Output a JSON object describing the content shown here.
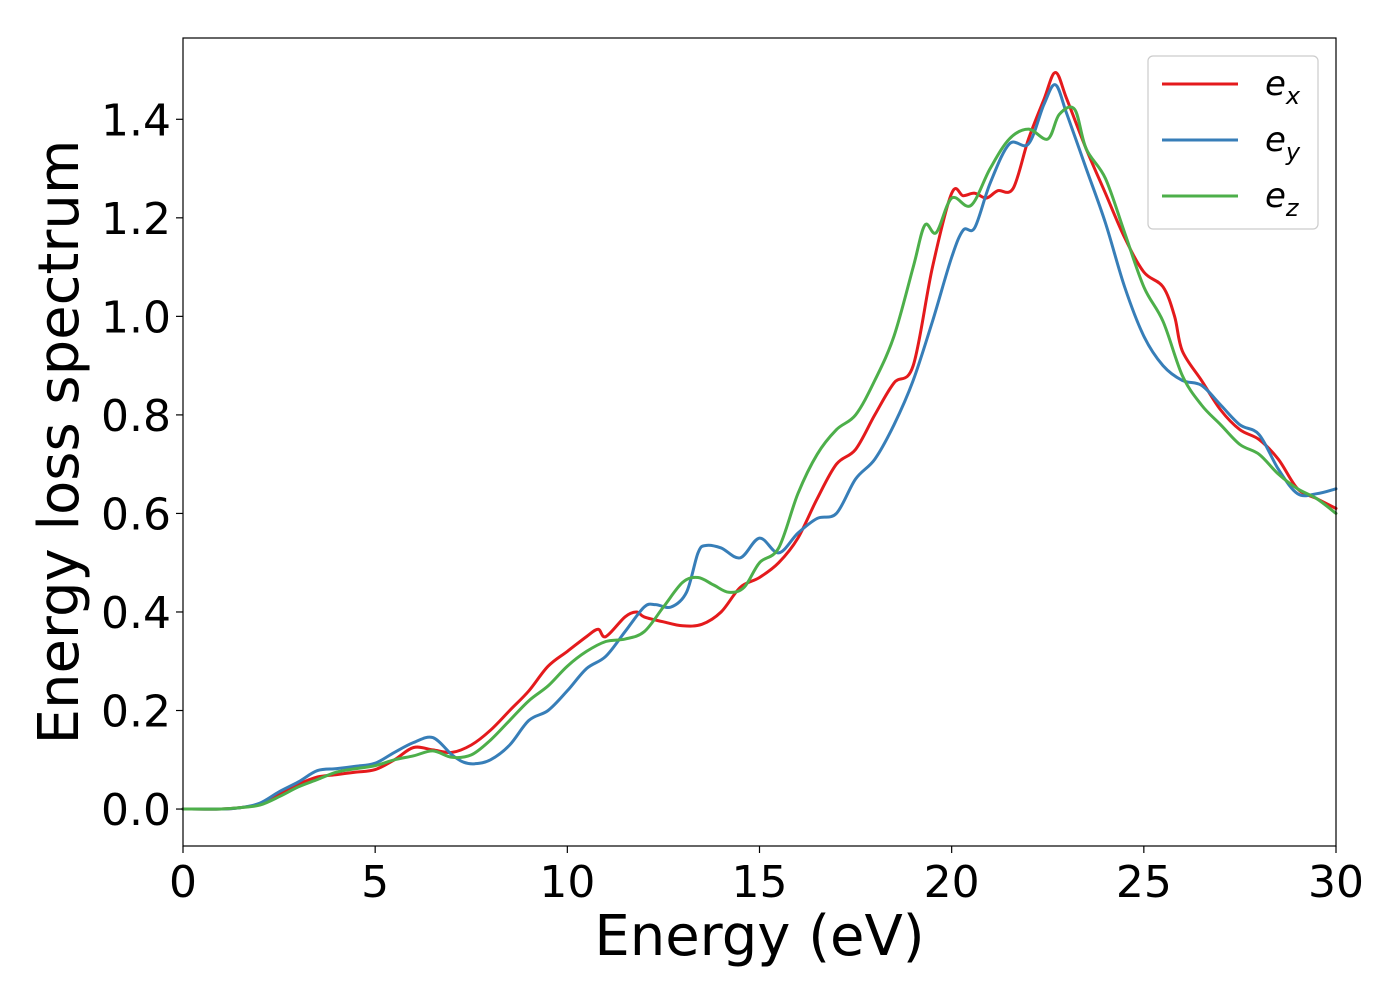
{
  "chart_data": {
    "type": "line",
    "title": "",
    "xlabel": "Energy (eV)",
    "ylabel": "Energy loss spectrum",
    "xlim": [
      0,
      30
    ],
    "ylim": [
      -0.075,
      1.565
    ],
    "xticks": [
      0,
      5,
      10,
      15,
      20,
      25,
      30
    ],
    "xtick_labels": [
      "0",
      "5",
      "10",
      "15",
      "20",
      "25",
      "30"
    ],
    "yticks": [
      0.0,
      0.2,
      0.4,
      0.6,
      0.8,
      1.0,
      1.2,
      1.4
    ],
    "ytick_labels": [
      "0.0",
      "0.2",
      "0.4",
      "0.6",
      "0.8",
      "1.0",
      "1.2",
      "1.4"
    ],
    "grid": false,
    "legend_position": "top-right",
    "series": [
      {
        "name": "e_x",
        "legend_base": "e",
        "legend_sub": "x",
        "color": "#e41a1c",
        "x": [
          0,
          1,
          1.5,
          2,
          2.5,
          3,
          3.5,
          4,
          4.5,
          5,
          5.5,
          6,
          6.5,
          7,
          7.5,
          8,
          8.5,
          9,
          9.5,
          10,
          10.5,
          10.8,
          11,
          11.5,
          11.8,
          12,
          12.5,
          13,
          13.5,
          14,
          14.5,
          15,
          15.5,
          16,
          16.5,
          17,
          17.5,
          18,
          18.5,
          19,
          19.5,
          20,
          20.3,
          20.6,
          20.9,
          21.2,
          21.6,
          22,
          22.4,
          22.7,
          23,
          23.5,
          24,
          24.5,
          25,
          25.5,
          25.8,
          26,
          26.5,
          27,
          27.5,
          28,
          28.5,
          29,
          29.5,
          30
        ],
        "y": [
          0,
          0,
          0.003,
          0.01,
          0.03,
          0.05,
          0.065,
          0.07,
          0.075,
          0.08,
          0.1,
          0.125,
          0.12,
          0.115,
          0.13,
          0.16,
          0.2,
          0.24,
          0.29,
          0.32,
          0.35,
          0.365,
          0.35,
          0.39,
          0.4,
          0.39,
          0.38,
          0.372,
          0.375,
          0.4,
          0.45,
          0.47,
          0.5,
          0.55,
          0.63,
          0.7,
          0.73,
          0.8,
          0.865,
          0.9,
          1.1,
          1.25,
          1.245,
          1.25,
          1.24,
          1.255,
          1.26,
          1.36,
          1.44,
          1.495,
          1.44,
          1.34,
          1.25,
          1.16,
          1.09,
          1.06,
          1.0,
          0.93,
          0.87,
          0.81,
          0.77,
          0.75,
          0.71,
          0.65,
          0.63,
          0.61
        ]
      },
      {
        "name": "e_y",
        "legend_base": "e",
        "legend_sub": "y",
        "color": "#377eb8",
        "x": [
          0,
          1,
          1.5,
          2,
          2.5,
          3,
          3.5,
          4,
          4.5,
          5,
          5.5,
          6,
          6.5,
          7,
          7.3,
          7.6,
          8,
          8.5,
          9,
          9.5,
          10,
          10.5,
          11,
          11.5,
          12,
          12.3,
          12.7,
          13.1,
          13.4,
          13.6,
          14,
          14.5,
          15,
          15.5,
          16,
          16.5,
          17,
          17.5,
          18,
          18.5,
          19,
          19.5,
          20,
          20.3,
          20.6,
          21,
          21.5,
          22,
          22.4,
          22.7,
          23,
          23.5,
          24,
          24.5,
          25,
          25.5,
          26,
          26.5,
          27,
          27.5,
          28,
          28.5,
          29,
          29.5,
          30
        ],
        "y": [
          0,
          0,
          0.003,
          0.012,
          0.035,
          0.055,
          0.078,
          0.082,
          0.087,
          0.093,
          0.115,
          0.135,
          0.145,
          0.11,
          0.095,
          0.092,
          0.1,
          0.13,
          0.18,
          0.2,
          0.24,
          0.285,
          0.31,
          0.36,
          0.41,
          0.415,
          0.41,
          0.44,
          0.52,
          0.535,
          0.53,
          0.51,
          0.55,
          0.52,
          0.56,
          0.59,
          0.6,
          0.67,
          0.71,
          0.78,
          0.87,
          0.99,
          1.12,
          1.175,
          1.18,
          1.27,
          1.35,
          1.35,
          1.43,
          1.47,
          1.41,
          1.3,
          1.19,
          1.06,
          0.96,
          0.9,
          0.87,
          0.86,
          0.82,
          0.78,
          0.76,
          0.69,
          0.64,
          0.64,
          0.65
        ]
      },
      {
        "name": "e_z",
        "legend_base": "e",
        "legend_sub": "z",
        "color": "#4daf4a",
        "x": [
          0,
          1,
          1.5,
          2,
          2.5,
          3,
          3.5,
          4,
          4.5,
          5,
          5.5,
          6,
          6.5,
          7,
          7.5,
          8,
          8.5,
          9,
          9.5,
          10,
          10.5,
          11,
          11.5,
          12,
          12.5,
          13,
          13.4,
          13.8,
          14.2,
          14.6,
          15,
          15.5,
          16,
          16.5,
          17,
          17.5,
          18,
          18.5,
          19,
          19.3,
          19.6,
          20,
          20.5,
          21,
          21.5,
          22,
          22.5,
          22.8,
          23.2,
          23.5,
          24,
          24.5,
          25,
          25.5,
          26,
          26.5,
          27,
          27.5,
          28,
          28.5,
          29,
          29.5,
          30
        ],
        "y": [
          0,
          0,
          0.003,
          0.008,
          0.025,
          0.045,
          0.06,
          0.075,
          0.082,
          0.088,
          0.1,
          0.108,
          0.118,
          0.105,
          0.11,
          0.14,
          0.18,
          0.22,
          0.25,
          0.29,
          0.32,
          0.34,
          0.345,
          0.36,
          0.41,
          0.46,
          0.47,
          0.455,
          0.44,
          0.45,
          0.5,
          0.53,
          0.64,
          0.72,
          0.77,
          0.8,
          0.87,
          0.96,
          1.1,
          1.185,
          1.17,
          1.24,
          1.225,
          1.3,
          1.36,
          1.38,
          1.36,
          1.41,
          1.42,
          1.34,
          1.28,
          1.17,
          1.06,
          0.99,
          0.88,
          0.82,
          0.78,
          0.74,
          0.72,
          0.68,
          0.65,
          0.63,
          0.6
        ]
      }
    ]
  }
}
